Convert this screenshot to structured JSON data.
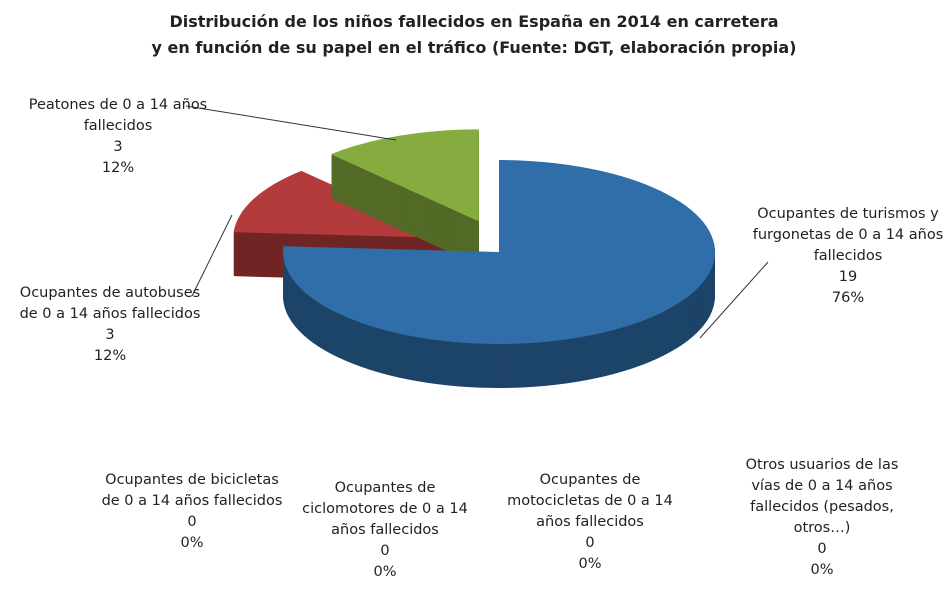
{
  "chart_data": {
    "type": "pie3d",
    "title": "Distribución de los niños fallecidos en España en 2014 en carretera",
    "subtitle": "y en función de su papel en el tráfico (Fuente: DGT, elaboración propia)",
    "categories": [
      "Ocupantes de turismos y furgonetas de 0 a 14 años fallecidos",
      "Ocupantes de autobuses de 0 a 14 años fallecidos",
      "Peatones de 0 a 14 años fallecidos",
      "Ocupantes de bicicletas de 0 a 14 años fallecidos",
      "Ocupantes de ciclomotores de 0 a 14 años fallecidos",
      "Ocupantes de motocicletas de 0 a 14 años fallecidos",
      "Otros usuarios de las vías de 0 a 14 años fallecidos (pesados, otros…)"
    ],
    "values": [
      19,
      3,
      3,
      0,
      0,
      0,
      0
    ],
    "percentage_labels": [
      "76%",
      "12%",
      "12%",
      "0%",
      "0%",
      "0%",
      "0%"
    ],
    "colors": [
      "#2f6ea8",
      "#b43b3b",
      "#86ab3f",
      "#6f5495",
      "#3aa0c0",
      "#e58a2e",
      "#8fb0dc"
    ],
    "exploded": [
      false,
      true,
      true,
      false,
      false,
      false,
      false
    ]
  }
}
